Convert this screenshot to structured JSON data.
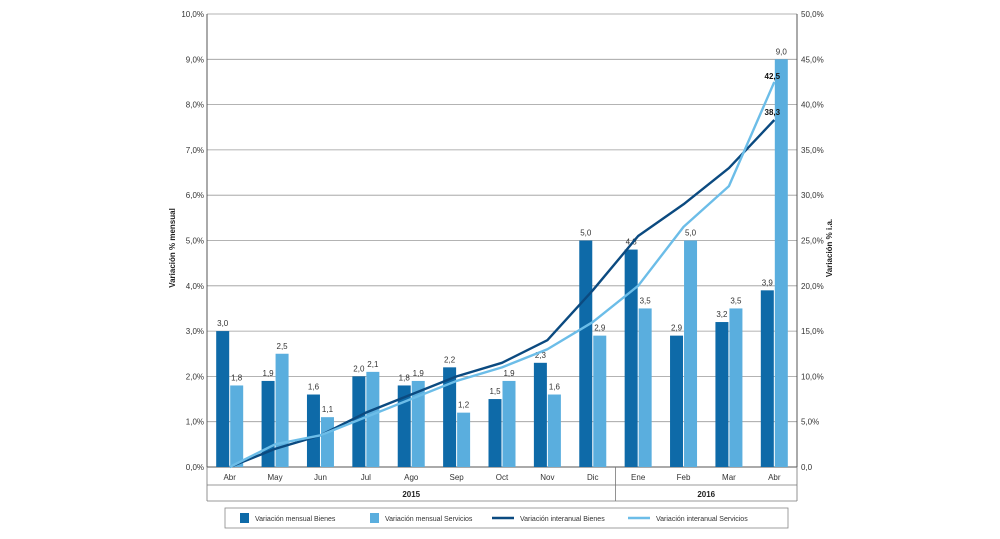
{
  "chart_data": {
    "type": "bar+line",
    "categories": [
      "Abr",
      "May",
      "Jun",
      "Jul",
      "Ago",
      "Sep",
      "Oct",
      "Nov",
      "Dic",
      "Ene",
      "Feb",
      "Mar",
      "Abr"
    ],
    "years": [
      {
        "label": "2015",
        "from": 0,
        "to": 8
      },
      {
        "label": "2016",
        "from": 9,
        "to": 12
      }
    ],
    "ylabel_left": "Variación % mensual",
    "ylabel_right": "Variación % i.a.",
    "ylim_left": [
      0,
      10
    ],
    "ylim_right": [
      0,
      50
    ],
    "yticks_left": [
      "0,0%",
      "1,0%",
      "2,0%",
      "3,0%",
      "4,0%",
      "5,0%",
      "6,0%",
      "7,0%",
      "8,0%",
      "9,0%",
      "10,0%"
    ],
    "yticks_right": [
      "0,0",
      "5,0%",
      "10,0%",
      "15,0%",
      "20,0%",
      "25,0%",
      "30,0%",
      "35,0%",
      "40,0%",
      "45,0%",
      "50,0%"
    ],
    "bar_series": [
      {
        "name": "Variación mensual Bienes",
        "color": "#0e6aa8",
        "values": [
          3.0,
          1.9,
          1.6,
          2.0,
          1.8,
          2.2,
          1.5,
          2.3,
          5.0,
          4.8,
          2.9,
          3.2,
          3.9
        ],
        "labels": [
          "3,0",
          "1,9",
          "1,6",
          "2,0",
          "1,8",
          "2,2",
          "1,5",
          "2,3",
          "5,0",
          "4,8",
          "2,9",
          "3,2",
          "3,9"
        ]
      },
      {
        "name": "Variación mensual Servicios",
        "color": "#5aaede",
        "values": [
          1.8,
          2.5,
          1.1,
          2.1,
          1.9,
          1.2,
          1.9,
          1.6,
          2.9,
          3.5,
          5.0,
          3.5,
          9.0
        ],
        "labels": [
          "1,8",
          "2,5",
          "1,1",
          "2,1",
          "1,9",
          "1,2",
          "1,9",
          "1,6",
          "2,9",
          "3,5",
          "5,0",
          "3,5",
          "9,0"
        ]
      }
    ],
    "line_series": [
      {
        "name": "Variación interanual Bienes",
        "color": "#0b4a80",
        "values": [
          0.0,
          2.0,
          3.5,
          6.0,
          8.0,
          10.0,
          11.5,
          14.0,
          19.5,
          25.5,
          29.0,
          33.0,
          38.3
        ],
        "end_label": "38,3"
      },
      {
        "name": "Variación interanual Servicios",
        "color": "#6cbde8",
        "values": [
          0.0,
          2.5,
          3.5,
          5.5,
          7.5,
          9.5,
          11.0,
          13.0,
          16.0,
          20.0,
          26.5,
          31.0,
          42.5
        ],
        "end_label": "42,5"
      }
    ],
    "grid": true,
    "legend_position": "bottom"
  }
}
